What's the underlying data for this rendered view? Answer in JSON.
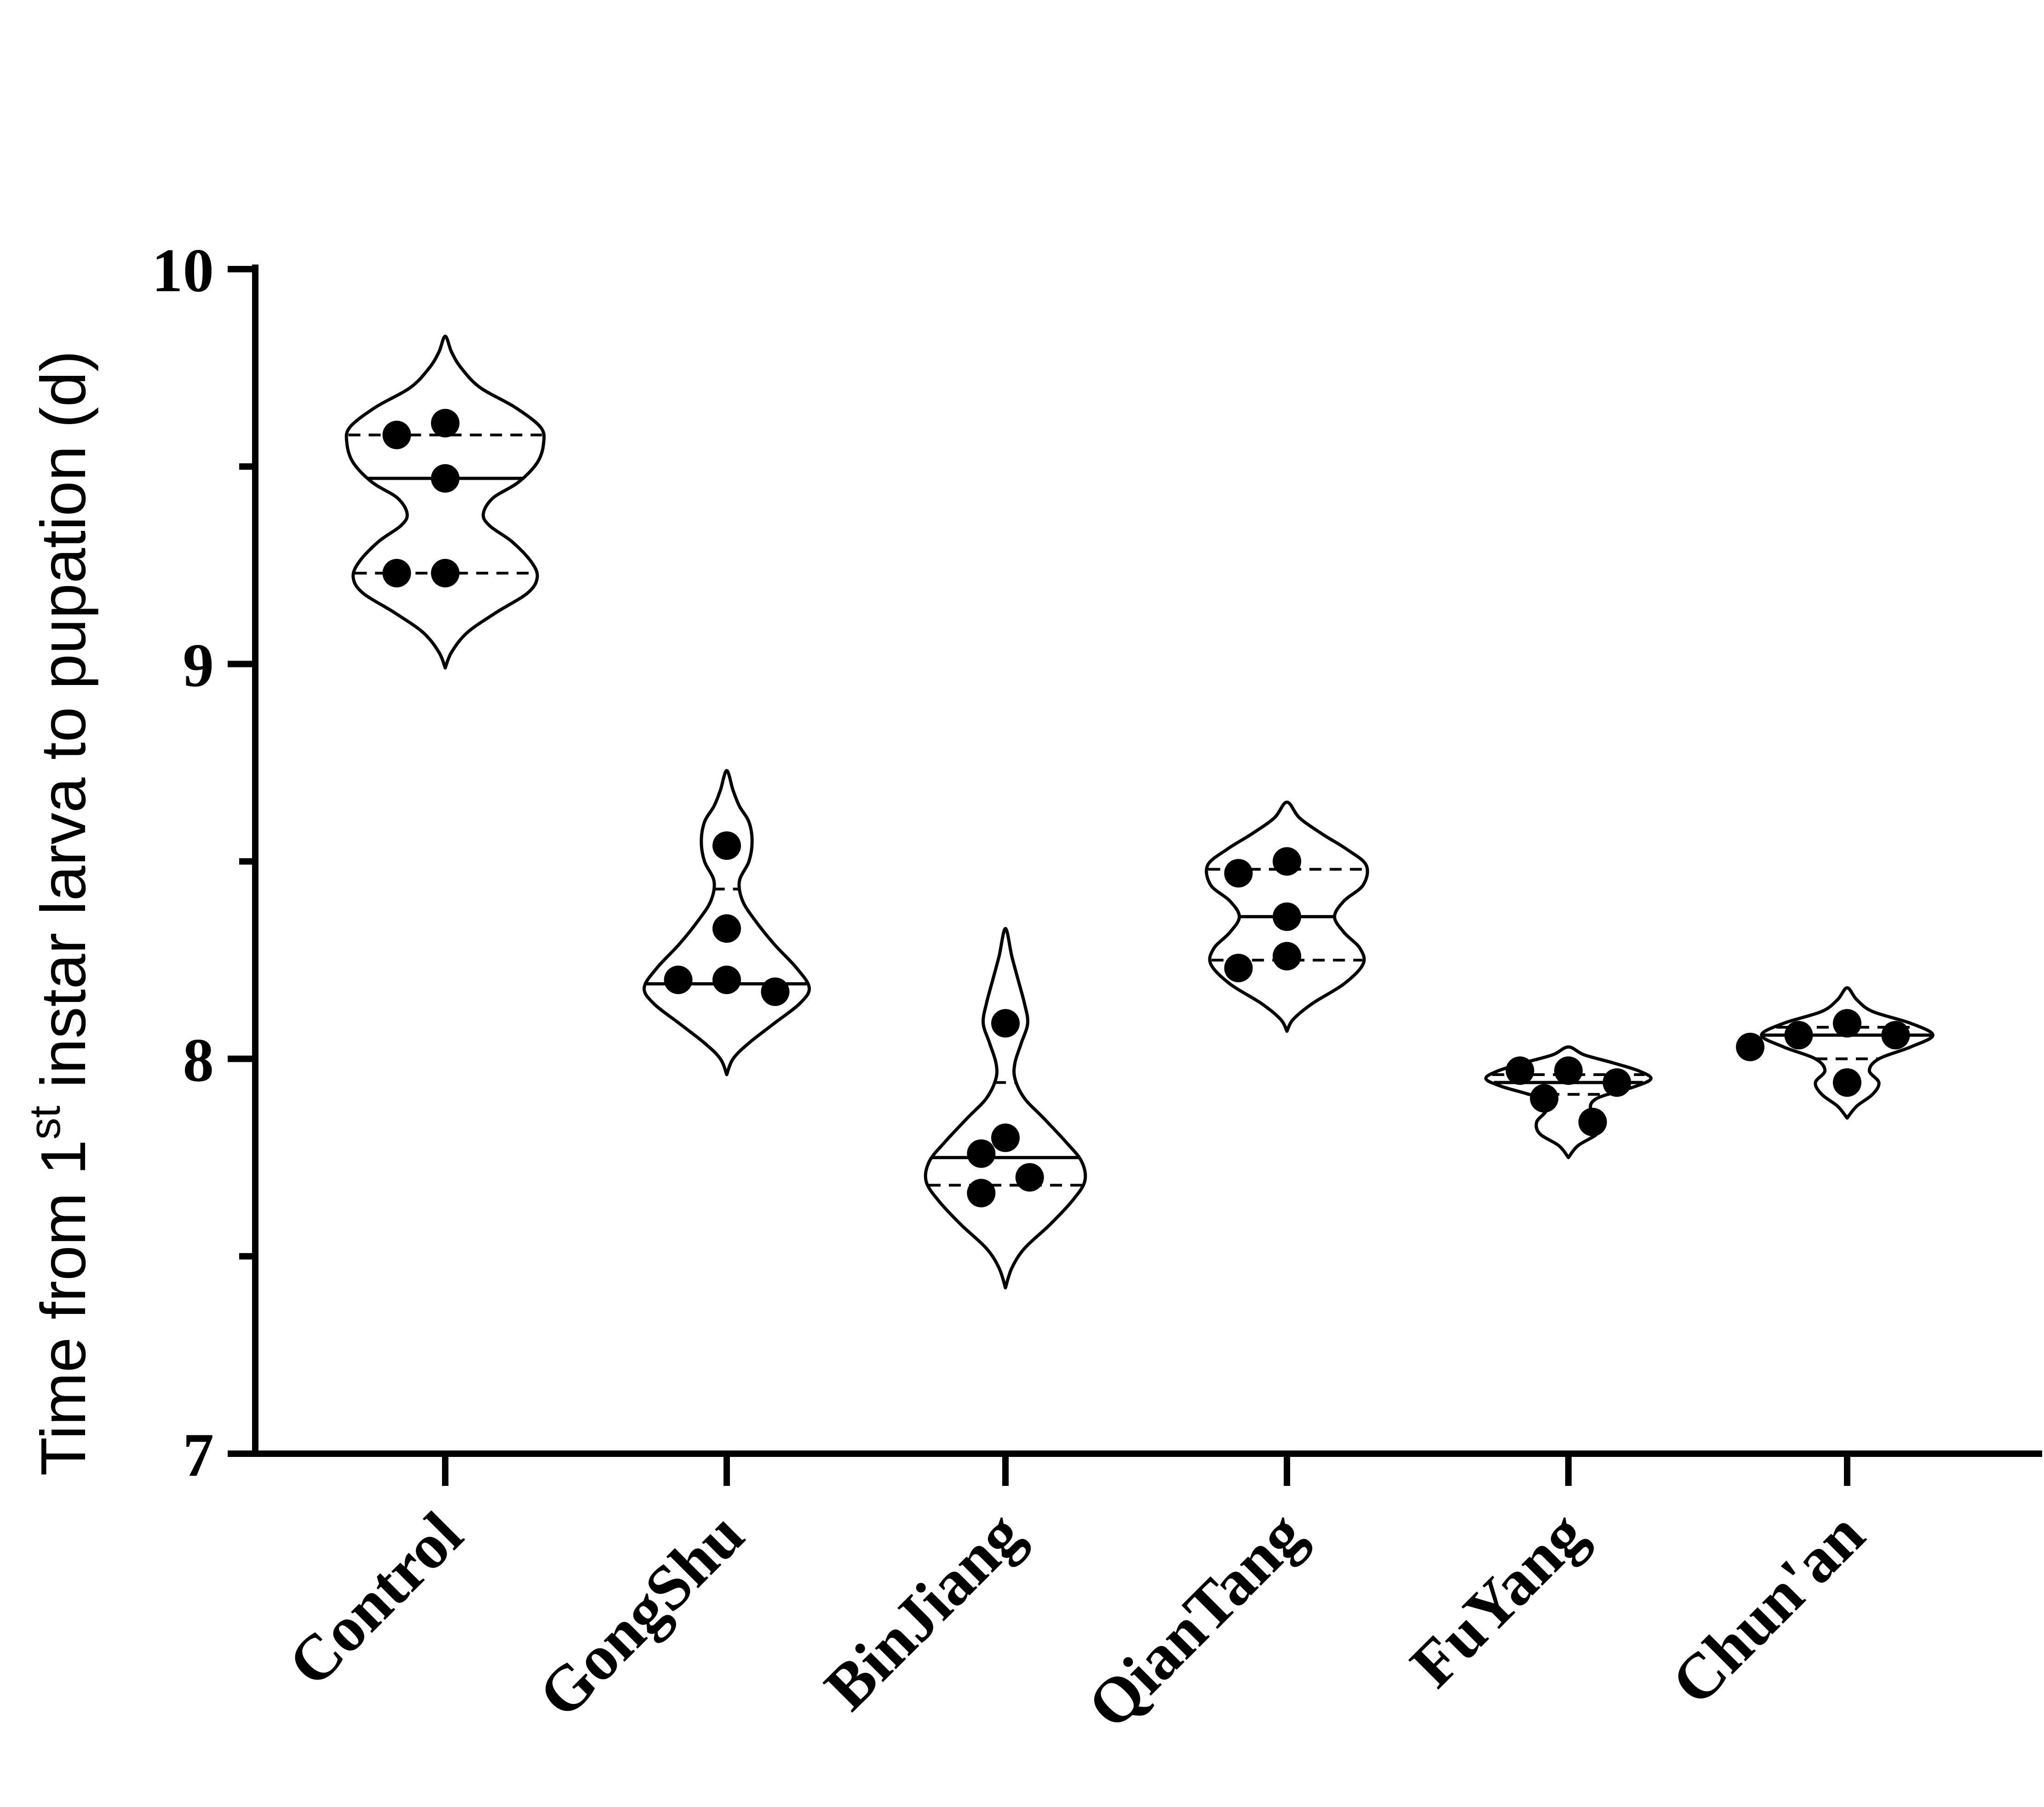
{
  "chart_data": {
    "type": "violin",
    "ylabel_main": "Time from 1",
    "ylabel_sup": "st",
    "ylabel_rest": " instar larva to pupation (d)",
    "xlabel": "",
    "ylim": [
      7,
      10
    ],
    "y_major_ticks": [
      7,
      8,
      9,
      10
    ],
    "y_major_tick_labels": [
      "7",
      "8",
      "9",
      "10"
    ],
    "y_minor_ticks": [
      7.5,
      8.5,
      9.5
    ],
    "grid": false,
    "categories": [
      "Control",
      "GongShu",
      "BinJiang",
      "QianTang",
      "FuYang",
      "Chun'an"
    ],
    "groups": [
      {
        "name": "Control",
        "points": [
          9.61,
          9.58,
          9.47,
          9.23,
          9.23
        ],
        "median": 9.47,
        "quartiles": [
          9.23,
          9.58
        ],
        "range": [
          8.99,
          9.83
        ],
        "density": [
          [
            8.99,
            0
          ],
          [
            9.03,
            0.02
          ],
          [
            9.08,
            0.07
          ],
          [
            9.13,
            0.16
          ],
          [
            9.18,
            0.26
          ],
          [
            9.22,
            0.29
          ],
          [
            9.26,
            0.27
          ],
          [
            9.31,
            0.21
          ],
          [
            9.35,
            0.14
          ],
          [
            9.38,
            0.12
          ],
          [
            9.42,
            0.15
          ],
          [
            9.46,
            0.23
          ],
          [
            9.51,
            0.29
          ],
          [
            9.56,
            0.31
          ],
          [
            9.6,
            0.3
          ],
          [
            9.65,
            0.22
          ],
          [
            9.7,
            0.11
          ],
          [
            9.75,
            0.05
          ],
          [
            9.79,
            0.02
          ],
          [
            9.83,
            0
          ]
        ]
      },
      {
        "name": "GongShu",
        "points": [
          8.54,
          8.33,
          8.2,
          8.2,
          8.17
        ],
        "median": 8.19,
        "quartiles": [
          8.19,
          8.43
        ],
        "range": [
          7.96,
          8.73
        ],
        "density": [
          [
            7.96,
            0
          ],
          [
            8.0,
            0.02
          ],
          [
            8.04,
            0.07
          ],
          [
            8.09,
            0.15
          ],
          [
            8.14,
            0.23
          ],
          [
            8.18,
            0.26
          ],
          [
            8.23,
            0.22
          ],
          [
            8.29,
            0.15
          ],
          [
            8.35,
            0.09
          ],
          [
            8.4,
            0.05
          ],
          [
            8.45,
            0.04
          ],
          [
            8.5,
            0.07
          ],
          [
            8.55,
            0.08
          ],
          [
            8.6,
            0.07
          ],
          [
            8.64,
            0.04
          ],
          [
            8.68,
            0.02
          ],
          [
            8.73,
            0
          ]
        ]
      },
      {
        "name": "BinJiang",
        "points": [
          8.09,
          7.8,
          7.76,
          7.7,
          7.66
        ],
        "median": 7.75,
        "quartiles": [
          7.68,
          7.94
        ],
        "range": [
          7.42,
          8.33
        ],
        "density": [
          [
            7.42,
            0
          ],
          [
            7.47,
            0.02
          ],
          [
            7.52,
            0.06
          ],
          [
            7.58,
            0.14
          ],
          [
            7.64,
            0.21
          ],
          [
            7.69,
            0.25
          ],
          [
            7.74,
            0.24
          ],
          [
            7.79,
            0.19
          ],
          [
            7.85,
            0.12
          ],
          [
            7.9,
            0.06
          ],
          [
            7.95,
            0.03
          ],
          [
            7.99,
            0.03
          ],
          [
            8.04,
            0.05
          ],
          [
            8.09,
            0.07
          ],
          [
            8.14,
            0.06
          ],
          [
            8.2,
            0.04
          ],
          [
            8.26,
            0.02
          ],
          [
            8.33,
            0
          ]
        ]
      },
      {
        "name": "QianTang",
        "points": [
          8.5,
          8.47,
          8.36,
          8.26,
          8.23
        ],
        "median": 8.36,
        "quartiles": [
          8.25,
          8.48
        ],
        "range": [
          8.07,
          8.65
        ],
        "density": [
          [
            8.07,
            0
          ],
          [
            8.1,
            0.02
          ],
          [
            8.14,
            0.08
          ],
          [
            8.19,
            0.18
          ],
          [
            8.24,
            0.24
          ],
          [
            8.28,
            0.23
          ],
          [
            8.32,
            0.18
          ],
          [
            8.36,
            0.15
          ],
          [
            8.4,
            0.18
          ],
          [
            8.44,
            0.24
          ],
          [
            8.49,
            0.25
          ],
          [
            8.53,
            0.19
          ],
          [
            8.57,
            0.11
          ],
          [
            8.61,
            0.04
          ],
          [
            8.65,
            0
          ]
        ]
      },
      {
        "name": "FuYang",
        "points": [
          7.97,
          7.97,
          7.94,
          7.9,
          7.84
        ],
        "median": 7.94,
        "quartiles": [
          7.91,
          7.96
        ],
        "range": [
          7.75,
          8.03
        ],
        "density": [
          [
            7.75,
            0
          ],
          [
            7.78,
            0.03
          ],
          [
            7.81,
            0.09
          ],
          [
            7.84,
            0.1
          ],
          [
            7.87,
            0.07
          ],
          [
            7.9,
            0.09
          ],
          [
            7.93,
            0.21
          ],
          [
            7.95,
            0.26
          ],
          [
            7.97,
            0.22
          ],
          [
            7.99,
            0.14
          ],
          [
            8.01,
            0.05
          ],
          [
            8.03,
            0
          ]
        ]
      },
      {
        "name": "Chun'an",
        "points": [
          8.09,
          8.06,
          8.06,
          8.03,
          7.94
        ],
        "median": 8.06,
        "quartiles": [
          8.0,
          8.08
        ],
        "range": [
          7.85,
          8.18
        ],
        "density": [
          [
            7.85,
            0
          ],
          [
            7.88,
            0.03
          ],
          [
            7.91,
            0.08
          ],
          [
            7.94,
            0.1
          ],
          [
            7.97,
            0.07
          ],
          [
            8.0,
            0.1
          ],
          [
            8.03,
            0.2
          ],
          [
            8.06,
            0.27
          ],
          [
            8.09,
            0.2
          ],
          [
            8.12,
            0.08
          ],
          [
            8.15,
            0.03
          ],
          [
            8.18,
            0
          ]
        ]
      }
    ]
  }
}
